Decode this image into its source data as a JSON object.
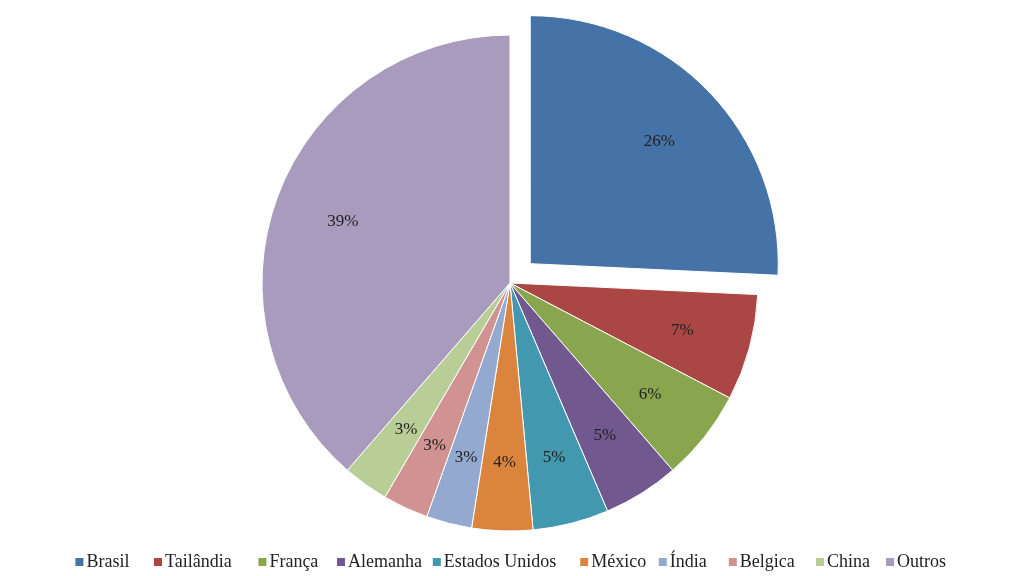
{
  "chart_data": {
    "type": "pie",
    "categories": [
      "Brasil",
      "Tailândia",
      "França",
      "Alemanha",
      "Estados Unidos",
      "México",
      "Índia",
      "Belgica",
      "China",
      "Outros"
    ],
    "values": [
      26,
      7,
      6,
      5,
      5,
      4,
      3,
      3,
      3,
      39
    ],
    "colors": [
      "#4572a7",
      "#aa4643",
      "#89a54e",
      "#71588f",
      "#4198af",
      "#db843d",
      "#93a9cf",
      "#d19392",
      "#b9cd96",
      "#a99bbd"
    ],
    "value_labels": [
      "26%",
      "7%",
      "6%",
      "5%",
      "5%",
      "4%",
      "3%",
      "3%",
      "3%",
      "39%"
    ],
    "legend": "bottom"
  }
}
